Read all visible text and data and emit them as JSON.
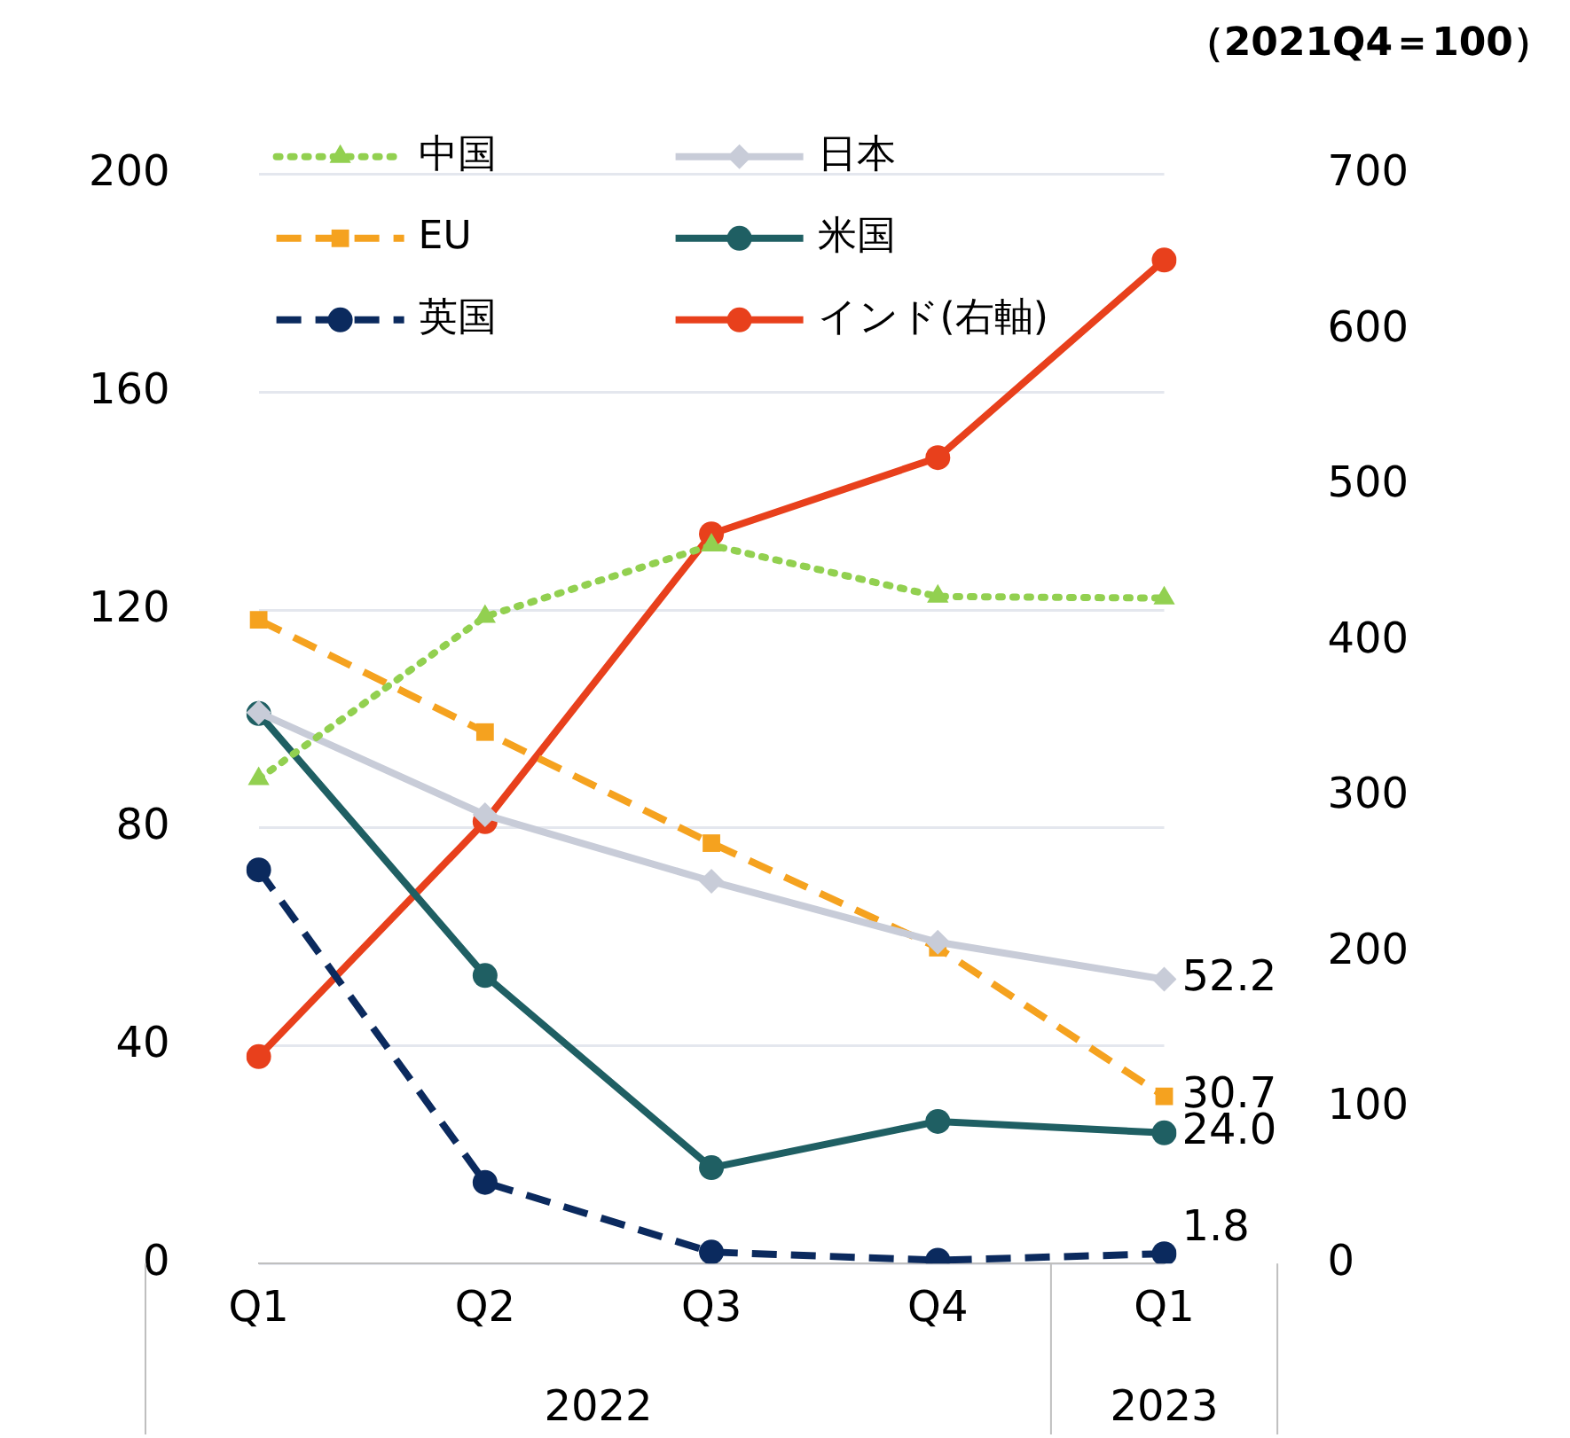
{
  "chart_data": {
    "type": "line",
    "title": "（2021Q4＝100）",
    "categories": [
      "Q1",
      "Q2",
      "Q3",
      "Q4",
      "Q1"
    ],
    "annotations": [
      "2022",
      "2023"
    ],
    "ylim": [
      0,
      200
    ],
    "yticks": [
      0,
      40,
      80,
      120,
      160,
      200
    ],
    "y2lim": [
      0,
      700
    ],
    "y2ticks": [
      0,
      100,
      200,
      300,
      400,
      500,
      600,
      700
    ],
    "grid": "y",
    "legend": "top left",
    "series": [
      {
        "name": "中国",
        "color": "#92d050",
        "marker": "triangle",
        "line_style": "dotted",
        "values": [
          89,
          118.8,
          131.9,
          122.5,
          122.2
        ]
      },
      {
        "name": "日本",
        "color": "#c8ccd8",
        "marker": "diamond",
        "line_style": "solid",
        "values": [
          101.2,
          82.4,
          70.2,
          59,
          52.2
        ],
        "value_labels": [
          null,
          null,
          null,
          null,
          "52.2"
        ]
      },
      {
        "name": "EU",
        "color": "#f5a21f",
        "marker": "square",
        "line_style": "dashed",
        "values": [
          118.2,
          97.6,
          77.2,
          58,
          30.7
        ],
        "value_labels": [
          null,
          null,
          null,
          null,
          "30.7"
        ]
      },
      {
        "name": "米国",
        "color": "#1f5f63",
        "marker": "circle",
        "line_style": "solid",
        "values": [
          101,
          52.9,
          17.6,
          26.1,
          24.0
        ],
        "value_labels": [
          null,
          null,
          null,
          null,
          "24.0"
        ]
      },
      {
        "name": "英国",
        "color": "#0b2a5e",
        "marker": "circle",
        "line_style": "dashed",
        "values": [
          72.3,
          14.9,
          2.1,
          0.6,
          1.8
        ],
        "value_labels": [
          null,
          null,
          null,
          null,
          "1.8"
        ]
      },
      {
        "name": "インド(右軸)",
        "color": "#e8401c",
        "marker": "circle",
        "line_style": "solid",
        "axis": "y2",
        "values": [
          133,
          284,
          469,
          518,
          645
        ]
      }
    ]
  }
}
